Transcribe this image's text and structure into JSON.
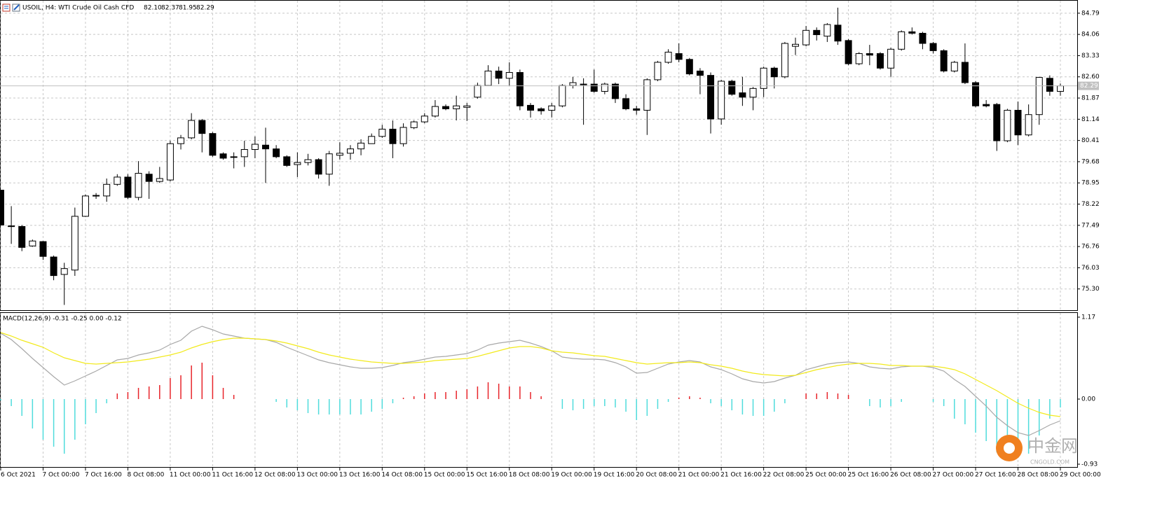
{
  "chart_data": [
    {
      "type": "candlestick",
      "title": "USOIL, H4:  WTI Crude Oil Cash CFD",
      "header_values": [
        "82.10",
        "82.37",
        "81.95",
        "82.29"
      ],
      "categories": [
        "6 Oct 2021",
        null,
        null,
        null,
        "7 Oct 00:00",
        null,
        null,
        null,
        "7 Oct 16:00",
        null,
        null,
        null,
        "8 Oct 08:00",
        null,
        null,
        null,
        "11 Oct 00:00",
        null,
        null,
        null,
        "11 Oct 16:00",
        null,
        null,
        null,
        "12 Oct 08:00",
        null,
        null,
        null,
        "13 Oct 00:00",
        null,
        null,
        null,
        "13 Oct 16:00",
        null,
        null,
        null,
        "14 Oct 08:00",
        null,
        null,
        null,
        "15 Oct 00:00",
        null,
        null,
        null,
        "15 Oct 16:00",
        null,
        null,
        null,
        "18 Oct 08:00",
        null,
        null,
        null,
        "19 Oct 00:00",
        null,
        null,
        null,
        "19 Oct 16:00",
        null,
        null,
        null,
        "20 Oct 08:00",
        null,
        null,
        null,
        "21 Oct 00:00",
        null,
        null,
        null,
        "21 Oct 16:00",
        null,
        null,
        null,
        "22 Oct 08:00",
        null,
        null,
        null,
        "25 Oct 00:00",
        null,
        null,
        null,
        "25 Oct 16:00",
        null,
        null,
        null,
        "26 Oct 08:00",
        null,
        null,
        null,
        "27 Oct 00:00",
        null,
        null,
        null,
        "27 Oct 16:00",
        null,
        null,
        null,
        "28 Oct 08:00",
        null,
        null,
        null,
        "29 Oct 00:00"
      ],
      "open": [
        78.7,
        77.47,
        77.45,
        76.78,
        76.93,
        76.4,
        75.8,
        75.95,
        77.8,
        78.5,
        78.5,
        78.9,
        79.15,
        78.45,
        79.25,
        79.0,
        79.05,
        80.3,
        80.5,
        81.1,
        80.65,
        79.95,
        79.83,
        79.85,
        80.1,
        80.25,
        80.12,
        79.85,
        79.58,
        79.65,
        79.75,
        79.25,
        79.9,
        79.97,
        80.12,
        80.3,
        80.55,
        80.8,
        80.3,
        80.85,
        81.05,
        81.25,
        81.58,
        81.5,
        81.55,
        81.9,
        82.3,
        82.8,
        82.55,
        82.75,
        81.62,
        81.5,
        81.45,
        81.6,
        82.3,
        82.35,
        82.35,
        82.1,
        82.35,
        81.85,
        81.5,
        81.45,
        82.5,
        83.1,
        83.4,
        83.2,
        82.8,
        82.65,
        81.15,
        82.45,
        82.05,
        81.9,
        82.2,
        82.9,
        82.6,
        83.65,
        83.7,
        84.2,
        84.0,
        84.38,
        83.85,
        83.05,
        83.4,
        83.4,
        82.9,
        83.55,
        84.15,
        84.1,
        83.75,
        83.5,
        82.8,
        83.1,
        82.4,
        81.65,
        81.65,
        80.4,
        81.45,
        80.6,
        81.3,
        82.55,
        82.1
      ],
      "high": [
        78.7,
        78.15,
        77.5,
        77.0,
        76.95,
        76.45,
        76.2,
        78.1,
        78.55,
        78.6,
        79.1,
        79.25,
        79.25,
        79.7,
        79.35,
        79.5,
        80.4,
        80.6,
        81.35,
        81.15,
        80.7,
        80.0,
        80.0,
        80.4,
        80.55,
        80.85,
        80.25,
        79.9,
        80.0,
        79.95,
        79.8,
        80.05,
        80.35,
        80.25,
        80.45,
        80.65,
        80.95,
        81.1,
        81.0,
        81.1,
        81.35,
        81.8,
        81.65,
        81.95,
        81.7,
        82.4,
        83.0,
        82.95,
        83.1,
        82.85,
        81.7,
        81.55,
        81.7,
        82.35,
        82.6,
        82.55,
        82.85,
        82.4,
        82.4,
        82.0,
        81.6,
        82.55,
        83.15,
        83.55,
        83.75,
        83.25,
        82.9,
        82.75,
        82.5,
        82.5,
        82.6,
        82.25,
        82.95,
        82.95,
        83.8,
        83.95,
        84.35,
        84.3,
        84.45,
        84.98,
        83.9,
        83.45,
        83.7,
        83.45,
        83.6,
        84.2,
        84.3,
        84.15,
        83.8,
        83.55,
        83.15,
        83.75,
        82.45,
        81.8,
        81.7,
        81.5,
        81.75,
        81.65,
        82.6,
        82.65,
        82.37
      ],
      "low": [
        77.5,
        76.85,
        76.6,
        76.75,
        76.3,
        75.6,
        74.75,
        75.75,
        77.78,
        78.4,
        78.3,
        78.85,
        78.4,
        78.35,
        78.4,
        78.95,
        79.0,
        80.1,
        80.45,
        80.0,
        79.85,
        79.75,
        79.45,
        79.5,
        79.8,
        78.95,
        79.8,
        79.5,
        79.15,
        79.55,
        79.1,
        78.85,
        79.75,
        79.75,
        79.9,
        80.3,
        80.5,
        79.8,
        80.2,
        80.8,
        81.0,
        81.2,
        81.45,
        81.1,
        81.08,
        81.85,
        82.3,
        82.35,
        82.3,
        81.45,
        81.2,
        81.3,
        81.2,
        81.55,
        82.2,
        80.95,
        82.05,
        82.0,
        81.7,
        81.45,
        81.3,
        80.6,
        82.45,
        83.05,
        83.1,
        82.65,
        82.0,
        80.65,
        80.95,
        81.95,
        81.6,
        81.45,
        81.9,
        82.2,
        82.55,
        83.35,
        83.65,
        83.85,
        83.8,
        83.7,
        83.0,
        83.0,
        83.0,
        82.85,
        82.6,
        83.5,
        84.05,
        83.55,
        83.4,
        82.75,
        82.75,
        82.35,
        81.55,
        81.55,
        80.05,
        80.35,
        80.25,
        80.55,
        80.95,
        81.95,
        81.95
      ],
      "close": [
        77.5,
        77.45,
        76.73,
        76.95,
        76.42,
        75.76,
        76.0,
        77.8,
        78.5,
        78.52,
        78.9,
        79.15,
        78.45,
        79.28,
        79.0,
        79.1,
        80.3,
        80.5,
        81.1,
        80.65,
        79.9,
        79.8,
        79.85,
        80.1,
        80.28,
        80.12,
        79.85,
        79.55,
        79.65,
        79.75,
        79.25,
        79.95,
        79.97,
        80.12,
        80.32,
        80.55,
        80.8,
        80.3,
        80.86,
        81.05,
        81.25,
        81.58,
        81.5,
        81.6,
        81.6,
        82.3,
        82.8,
        82.55,
        82.75,
        81.6,
        81.45,
        81.43,
        81.6,
        82.3,
        82.4,
        82.33,
        82.1,
        82.35,
        81.85,
        81.5,
        81.45,
        82.5,
        83.1,
        83.45,
        83.2,
        82.7,
        82.65,
        81.15,
        82.45,
        82.0,
        81.9,
        82.2,
        82.9,
        82.6,
        83.75,
        83.72,
        84.2,
        84.05,
        84.4,
        83.83,
        83.05,
        83.4,
        83.35,
        82.9,
        83.55,
        84.15,
        84.1,
        83.75,
        83.5,
        82.8,
        83.1,
        82.4,
        81.6,
        81.6,
        80.4,
        81.45,
        80.6,
        81.3,
        82.58,
        82.1,
        82.29
      ],
      "up_color": "#ffffff",
      "down_color": "#000000",
      "last_price_color": "#c0c0c0",
      "ylim": [
        74.57,
        85.22
      ],
      "yticks": [
        84.79,
        84.06,
        83.33,
        {
          "value": 82.6,
          "label": "82.60"
        },
        81.87,
        81.14,
        80.41,
        79.68,
        78.95,
        78.22,
        77.49,
        76.76,
        76.03,
        {
          "value": 75.3,
          "label": "75.30"
        }
      ],
      "grid": true
    },
    {
      "type": "macd",
      "title": "MACD(12,26,9) -0.31 -0.25 0.00 -0.12",
      "histogram": {
        "values": [
          -0.02,
          -0.1,
          -0.24,
          -0.42,
          -0.58,
          -0.68,
          -0.78,
          -0.58,
          -0.36,
          -0.2,
          -0.06,
          0.08,
          0.1,
          0.16,
          0.18,
          0.2,
          0.3,
          0.34,
          0.48,
          0.52,
          0.34,
          0.16,
          0.06,
          0.0,
          0.0,
          0.0,
          -0.04,
          -0.12,
          -0.16,
          -0.2,
          -0.22,
          -0.22,
          -0.22,
          -0.22,
          -0.22,
          -0.18,
          -0.14,
          -0.06,
          0.02,
          0.04,
          0.08,
          0.1,
          0.1,
          0.12,
          0.14,
          0.18,
          0.24,
          0.22,
          0.18,
          0.18,
          0.1,
          0.04,
          0.0,
          -0.14,
          -0.16,
          -0.14,
          -0.1,
          -0.1,
          -0.12,
          -0.18,
          -0.3,
          -0.24,
          -0.14,
          -0.04,
          0.02,
          0.04,
          0.02,
          -0.06,
          -0.1,
          -0.16,
          -0.22,
          -0.24,
          -0.24,
          -0.18,
          -0.06,
          0.0,
          0.08,
          0.08,
          0.1,
          0.08,
          0.06,
          0.0,
          -0.1,
          -0.12,
          -0.1,
          -0.04,
          0.0,
          0.0,
          -0.04,
          -0.1,
          -0.28,
          -0.36,
          -0.48,
          -0.6,
          -0.76,
          -0.82,
          -0.84,
          -0.78,
          -0.52,
          -0.28,
          -0.12
        ],
        "pos_color": "#e8242a",
        "neg_color": "#4fdcdc"
      },
      "series": [
        {
          "color": "#a8a8a8",
          "values": [
            0.94,
            0.85,
            0.72,
            0.58,
            0.45,
            0.32,
            0.2,
            0.26,
            0.33,
            0.4,
            0.48,
            0.56,
            0.58,
            0.63,
            0.66,
            0.7,
            0.78,
            0.84,
            0.97,
            1.04,
            0.99,
            0.93,
            0.9,
            0.87,
            0.86,
            0.85,
            0.81,
            0.74,
            0.68,
            0.62,
            0.56,
            0.52,
            0.49,
            0.46,
            0.44,
            0.44,
            0.45,
            0.48,
            0.52,
            0.54,
            0.57,
            0.6,
            0.61,
            0.63,
            0.65,
            0.7,
            0.77,
            0.8,
            0.82,
            0.84,
            0.8,
            0.75,
            0.69,
            0.6,
            0.58,
            0.57,
            0.57,
            0.56,
            0.52,
            0.46,
            0.37,
            0.38,
            0.44,
            0.5,
            0.53,
            0.55,
            0.53,
            0.46,
            0.42,
            0.36,
            0.29,
            0.25,
            0.23,
            0.25,
            0.3,
            0.34,
            0.42,
            0.46,
            0.5,
            0.52,
            0.53,
            0.51,
            0.46,
            0.44,
            0.43,
            0.46,
            0.47,
            0.47,
            0.45,
            0.4,
            0.28,
            0.18,
            0.04,
            -0.1,
            -0.26,
            -0.38,
            -0.48,
            -0.52,
            -0.45,
            -0.37,
            -0.31
          ]
        },
        {
          "color": "#f2ea1c",
          "values": [
            0.95,
            0.9,
            0.84,
            0.79,
            0.74,
            0.66,
            0.59,
            0.55,
            0.51,
            0.5,
            0.51,
            0.52,
            0.53,
            0.55,
            0.57,
            0.6,
            0.63,
            0.67,
            0.73,
            0.78,
            0.82,
            0.85,
            0.87,
            0.87,
            0.86,
            0.85,
            0.83,
            0.8,
            0.76,
            0.72,
            0.67,
            0.63,
            0.6,
            0.57,
            0.55,
            0.53,
            0.52,
            0.51,
            0.51,
            0.52,
            0.53,
            0.55,
            0.56,
            0.57,
            0.58,
            0.61,
            0.65,
            0.69,
            0.73,
            0.75,
            0.75,
            0.73,
            0.69,
            0.67,
            0.66,
            0.64,
            0.62,
            0.61,
            0.58,
            0.55,
            0.52,
            0.5,
            0.51,
            0.52,
            0.52,
            0.53,
            0.52,
            0.49,
            0.47,
            0.44,
            0.4,
            0.37,
            0.35,
            0.34,
            0.33,
            0.34,
            0.38,
            0.42,
            0.45,
            0.48,
            0.5,
            0.51,
            0.51,
            0.5,
            0.48,
            0.48,
            0.47,
            0.47,
            0.47,
            0.45,
            0.42,
            0.36,
            0.28,
            0.2,
            0.12,
            0.03,
            -0.06,
            -0.13,
            -0.19,
            -0.23,
            -0.25
          ]
        }
      ],
      "ylim": [
        -0.98,
        1.23
      ],
      "yticks": [
        1.17,
        {
          "value": 0,
          "label": "0.00"
        },
        -0.93
      ]
    }
  ],
  "watermark": {
    "brand": "中金网",
    "site": "CNGOLD.COM"
  }
}
